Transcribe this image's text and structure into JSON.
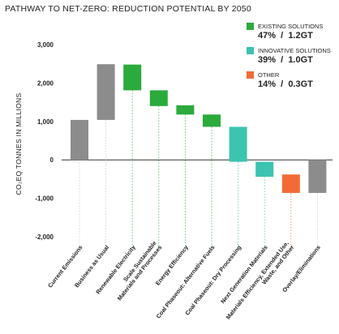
{
  "title": "PATHWAY TO NET-ZERO: REDUCTION POTENTIAL BY 2050",
  "legend": [
    {
      "name": "EXISTING SOLUTIONS",
      "percent": "47%",
      "amount": "1.2GT",
      "color": "#2bab3b"
    },
    {
      "name": "INNOVATIVE SOLUTIONS",
      "percent": "39%",
      "amount": "1.0GT",
      "color": "#3cc4b0"
    },
    {
      "name": "OTHER",
      "percent": "14%",
      "amount": "0.3GT",
      "color": "#f46a36"
    }
  ],
  "chart_data": {
    "type": "bar",
    "subtype": "waterfall",
    "ylabel": "CO₂EQ TONNES IN MILLIONS",
    "ylim": [
      -2000,
      3000
    ],
    "yticks": [
      3000,
      2000,
      1000,
      0,
      -1000,
      -2000
    ],
    "ytick_labels": [
      "3,000",
      "2,000",
      "1,000",
      "0",
      "-1,000",
      "-2,000"
    ],
    "grid": false,
    "legend_position": "top-right",
    "categories": [
      "Current Emissions",
      "Business as Usual",
      "Renewable Electricity",
      "Scale Sustainable Materials and Processes",
      "Energy Efficiency",
      "Coal Phaseout: Alternative Fuels",
      "Coal Phaseout: Dry Processing",
      "Next Generation Materials",
      "Materials Efficiency, Extended Use, Waste, and Other",
      "Overlay/Eliminations"
    ],
    "category_lines": [
      [
        "Current Emissions"
      ],
      [
        "Business as Usual"
      ],
      [
        "Renewable Electricity"
      ],
      [
        "Scale Sustainable",
        "Materials and Processes"
      ],
      [
        "Energy Efficiency"
      ],
      [
        "Coal Phaseout: Alternative Fuels"
      ],
      [
        "Coal Phaseout: Dry Processing"
      ],
      [
        "Next Generation Materials"
      ],
      [
        "Materials Efficiency, Extended Use,",
        "Waste, and Other"
      ],
      [
        "Overlay/Eliminations"
      ]
    ],
    "bars": [
      {
        "start": 0,
        "end": 1040,
        "group": "base"
      },
      {
        "start": 1040,
        "end": 2490,
        "group": "base"
      },
      {
        "start": 2480,
        "end": 1810,
        "group": "existing"
      },
      {
        "start": 1810,
        "end": 1400,
        "group": "existing"
      },
      {
        "start": 1420,
        "end": 1180,
        "group": "existing"
      },
      {
        "start": 1180,
        "end": 860,
        "group": "existing"
      },
      {
        "start": 860,
        "end": -50,
        "group": "innovative"
      },
      {
        "start": -50,
        "end": -440,
        "group": "innovative"
      },
      {
        "start": -380,
        "end": -860,
        "group": "other"
      },
      {
        "start": 0,
        "end": -860,
        "group": "base"
      }
    ],
    "group_colors": {
      "base": "#8c8c8c",
      "existing": "#2bab3b",
      "innovative": "#3cc4b0",
      "other": "#f46a36"
    }
  }
}
